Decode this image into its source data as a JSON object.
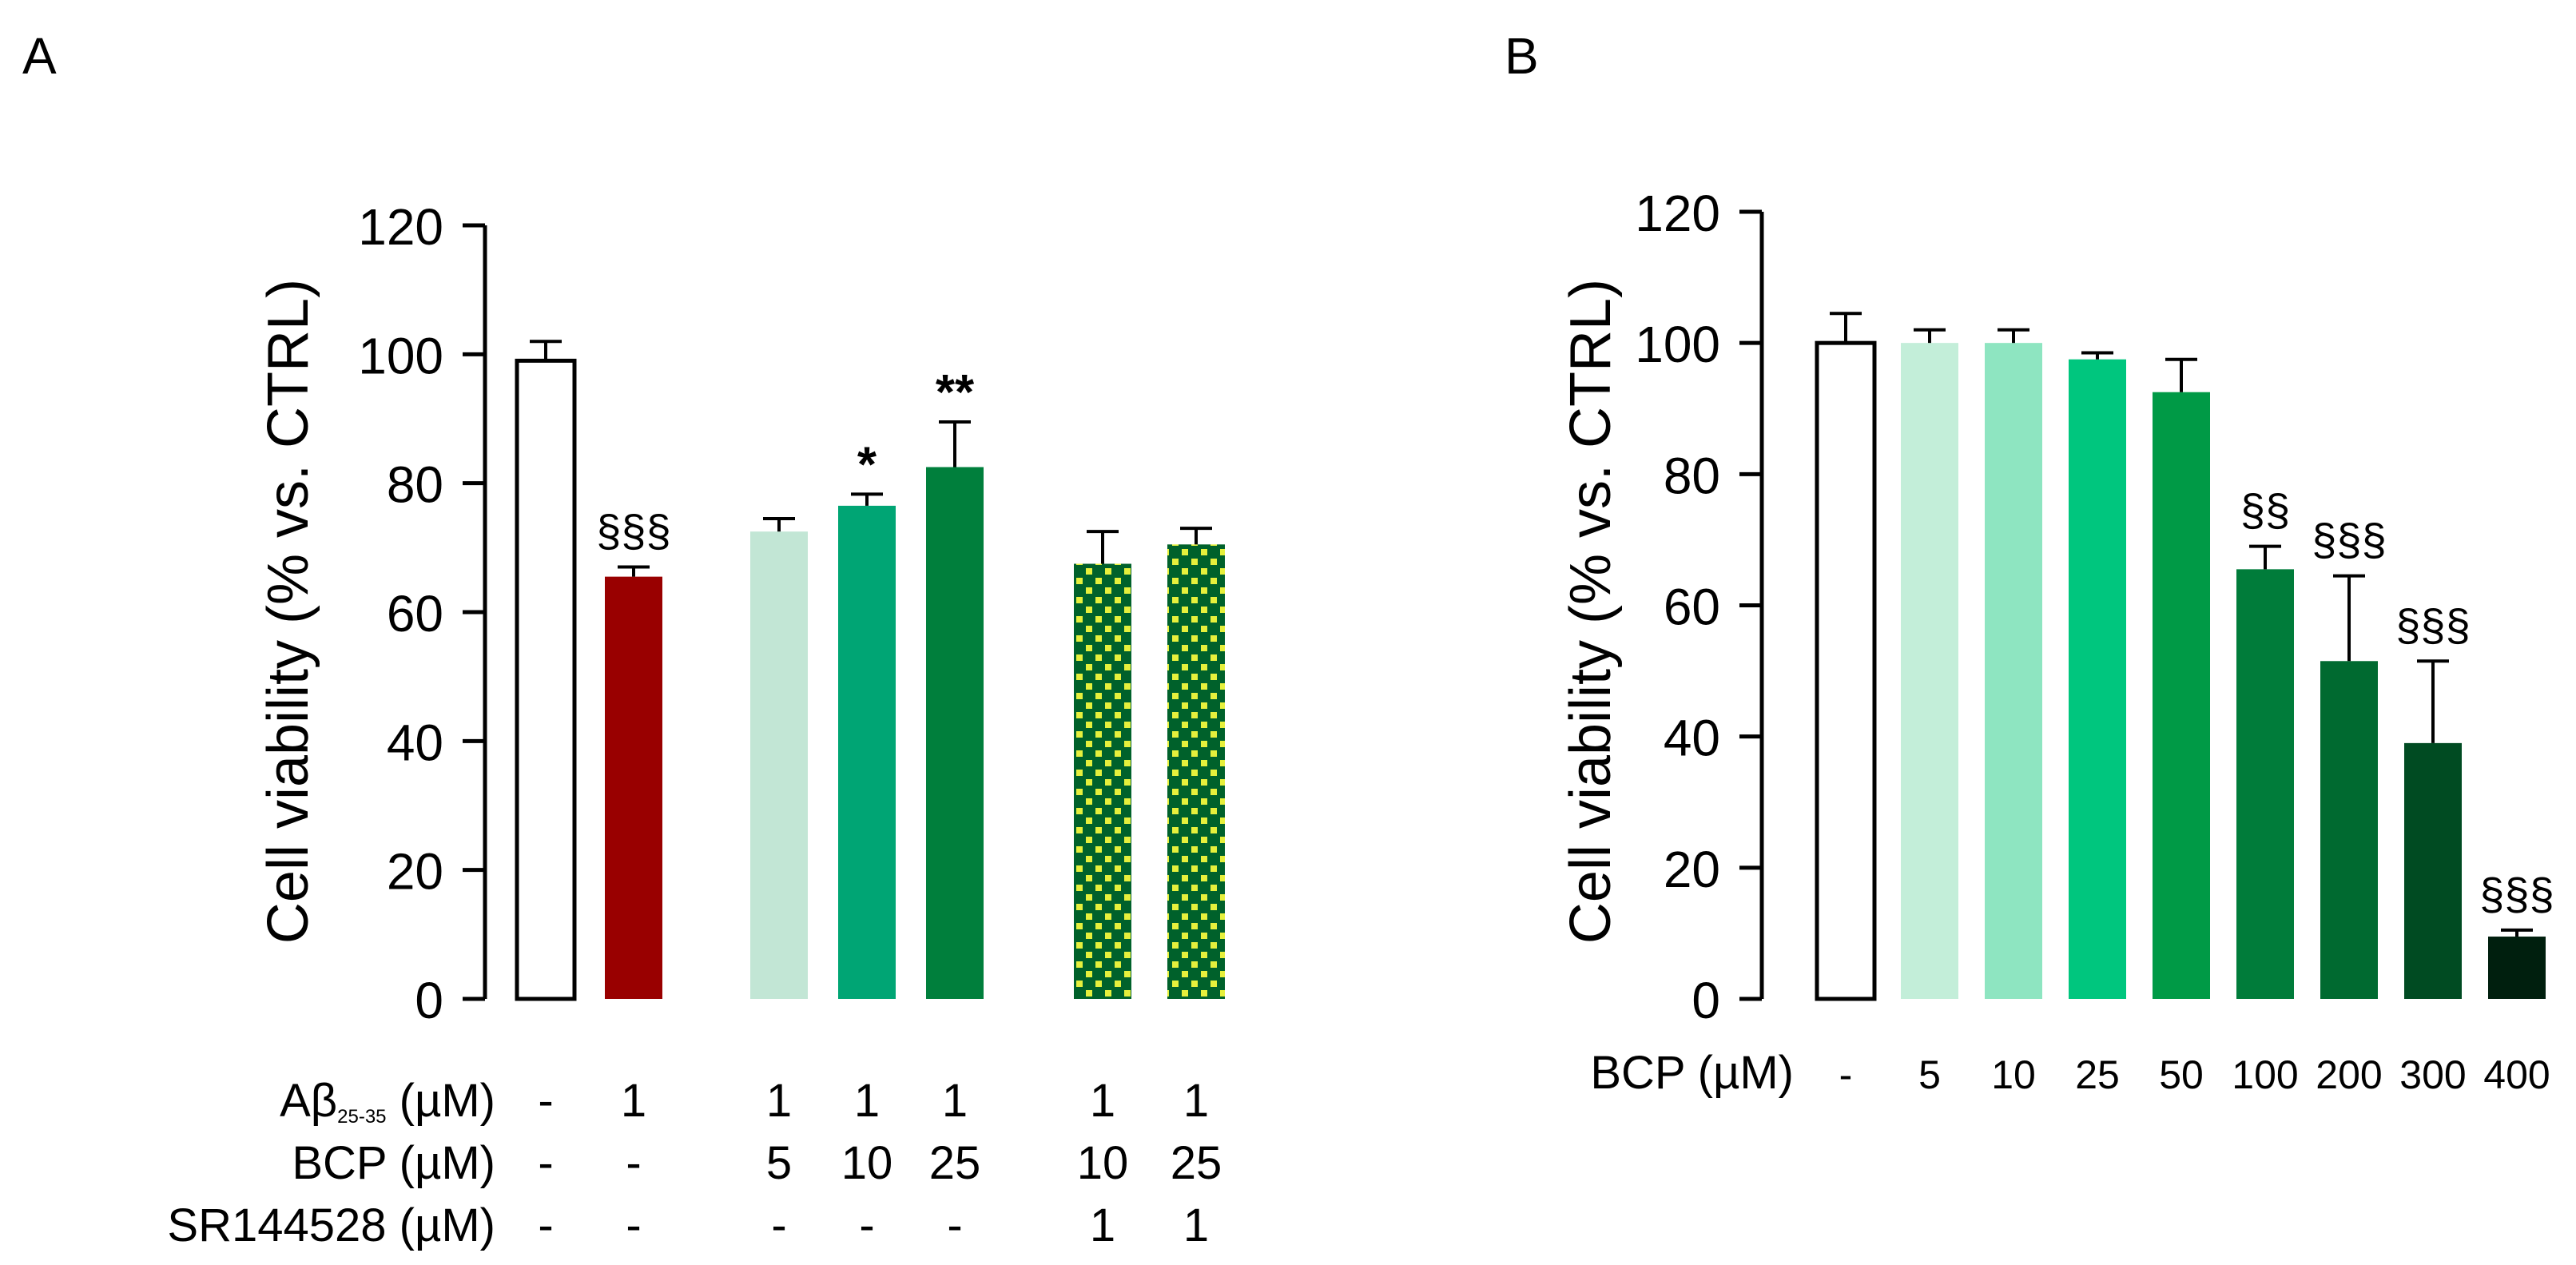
{
  "chart_data": [
    {
      "panel_label": "A",
      "type": "bar",
      "ylabel": "Cell viability (% vs. CTRL)",
      "ylim": [
        0,
        120
      ],
      "yticks": [
        0,
        20,
        40,
        60,
        80,
        100,
        120
      ],
      "grid": false,
      "bars": [
        {
          "value": 99,
          "error": 3,
          "annotation": "",
          "color": "#ffffff",
          "pattern": false
        },
        {
          "value": 65.5,
          "error": 1.5,
          "annotation": "§§§",
          "color": "#990000",
          "pattern": false
        },
        {
          "value": 72.5,
          "error": 2,
          "annotation": "",
          "color": "#c2e6d5",
          "pattern": false
        },
        {
          "value": 76.5,
          "error": 1.8,
          "annotation": "*",
          "color": "#00a574",
          "pattern": false
        },
        {
          "value": 82.5,
          "error": 7,
          "annotation": "**",
          "color": "#007f3c",
          "pattern": false
        },
        {
          "value": 67.5,
          "error": 5,
          "annotation": "",
          "color": "#00612b",
          "pattern": true
        },
        {
          "value": 70.5,
          "error": 2.5,
          "annotation": "",
          "color": "#00612b",
          "pattern": true
        }
      ],
      "condition_table": [
        {
          "label": "Aβ",
          "label_sub": "25-35",
          "label_unit": " (µM)",
          "values": [
            "-",
            "1",
            "1",
            "1",
            "1",
            "1",
            "1"
          ]
        },
        {
          "label": "BCP (µM)",
          "label_sub": "",
          "label_unit": "",
          "values": [
            "-",
            "-",
            "5",
            "10",
            "25",
            "10",
            "25"
          ]
        },
        {
          "label": "SR144528 (µM)",
          "label_sub": "",
          "label_unit": "",
          "values": [
            "-",
            "-",
            "-",
            "-",
            "-",
            "1",
            "1"
          ]
        }
      ]
    },
    {
      "panel_label": "B",
      "type": "bar",
      "ylabel": "Cell viability (% vs. CTRL)",
      "ylim": [
        0,
        120
      ],
      "yticks": [
        0,
        20,
        40,
        60,
        80,
        100,
        120
      ],
      "grid": false,
      "xlabel": "BCP (µM)",
      "categories": [
        "-",
        "5",
        "10",
        "25",
        "50",
        "100",
        "200",
        "300",
        "400"
      ],
      "bars": [
        {
          "value": 100,
          "error": 4.5,
          "annotation": "",
          "color": "#ffffff"
        },
        {
          "value": 100,
          "error": 2,
          "annotation": "",
          "color": "#c3eed9"
        },
        {
          "value": 100,
          "error": 2,
          "annotation": "",
          "color": "#8ee5c1"
        },
        {
          "value": 97.5,
          "error": 1,
          "annotation": "",
          "color": "#00c67e"
        },
        {
          "value": 92.5,
          "error": 5,
          "annotation": "",
          "color": "#009a46"
        },
        {
          "value": 65.5,
          "error": 3.5,
          "annotation": "§§",
          "color": "#007c3a"
        },
        {
          "value": 51.5,
          "error": 13,
          "annotation": "§§§",
          "color": "#006a30"
        },
        {
          "value": 39,
          "error": 12.5,
          "annotation": "§§§",
          "color": "#004b22"
        },
        {
          "value": 9.5,
          "error": 1,
          "annotation": "§§§",
          "color": "#001f0e"
        }
      ]
    }
  ]
}
